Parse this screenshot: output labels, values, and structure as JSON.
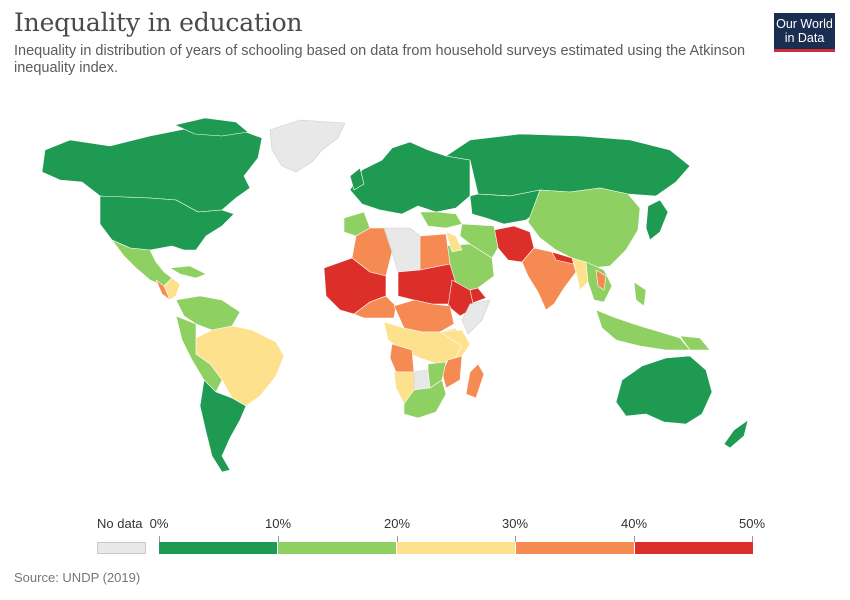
{
  "header": {
    "title": "Inequality in education",
    "subtitle": "Inequality in distribution of years of schooling based on data from household surveys estimated using the Atkinson inequality index."
  },
  "logo": {
    "line1": "Our World",
    "line2": "in Data",
    "bg_color": "#1a2e52",
    "accent_color": "#cf2a36"
  },
  "legend": {
    "no_data_label": "No data",
    "no_data_color": "#e8e8e8",
    "ticks": [
      "0%",
      "10%",
      "20%",
      "30%",
      "40%",
      "50%"
    ],
    "bins": [
      {
        "range": [
          0,
          10
        ],
        "color": "#1f9a52"
      },
      {
        "range": [
          10,
          20
        ],
        "color": "#8fd063"
      },
      {
        "range": [
          20,
          30
        ],
        "color": "#fde18c"
      },
      {
        "range": [
          30,
          40
        ],
        "color": "#f58b52"
      },
      {
        "range": [
          40,
          50
        ],
        "color": "#dc2f2a"
      }
    ]
  },
  "source": "Source: UNDP (2019)"
}
